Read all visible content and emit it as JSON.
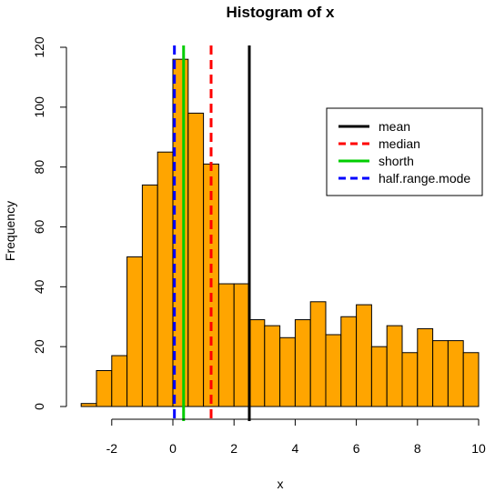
{
  "chart_data": {
    "type": "bar",
    "title": "Histogram of x",
    "xlabel": "x",
    "ylabel": "Frequency",
    "xlim": [
      -3.5,
      10.2
    ],
    "ylim": [
      0,
      120
    ],
    "xticks": [
      -2,
      0,
      2,
      4,
      6,
      8,
      10
    ],
    "yticks": [
      0,
      20,
      40,
      60,
      80,
      100,
      120
    ],
    "bin_width": 0.5,
    "bins": [
      {
        "x0": -3.0,
        "x1": -2.5,
        "count": 1
      },
      {
        "x0": -2.5,
        "x1": -2.0,
        "count": 12
      },
      {
        "x0": -2.0,
        "x1": -1.5,
        "count": 17
      },
      {
        "x0": -1.5,
        "x1": -1.0,
        "count": 50
      },
      {
        "x0": -1.0,
        "x1": -0.5,
        "count": 74
      },
      {
        "x0": -0.5,
        "x1": 0.0,
        "count": 85
      },
      {
        "x0": 0.0,
        "x1": 0.5,
        "count": 116
      },
      {
        "x0": 0.5,
        "x1": 1.0,
        "count": 98
      },
      {
        "x0": 1.0,
        "x1": 1.5,
        "count": 81
      },
      {
        "x0": 1.5,
        "x1": 2.0,
        "count": 41
      },
      {
        "x0": 2.0,
        "x1": 2.5,
        "count": 41
      },
      {
        "x0": 2.5,
        "x1": 3.0,
        "count": 29
      },
      {
        "x0": 3.0,
        "x1": 3.5,
        "count": 27
      },
      {
        "x0": 3.5,
        "x1": 4.0,
        "count": 23
      },
      {
        "x0": 4.0,
        "x1": 4.5,
        "count": 29
      },
      {
        "x0": 4.5,
        "x1": 5.0,
        "count": 35
      },
      {
        "x0": 5.0,
        "x1": 5.5,
        "count": 24
      },
      {
        "x0": 5.5,
        "x1": 6.0,
        "count": 30
      },
      {
        "x0": 6.0,
        "x1": 6.5,
        "count": 34
      },
      {
        "x0": 6.5,
        "x1": 7.0,
        "count": 20
      },
      {
        "x0": 7.0,
        "x1": 7.5,
        "count": 27
      },
      {
        "x0": 7.5,
        "x1": 8.0,
        "count": 18
      },
      {
        "x0": 8.0,
        "x1": 8.5,
        "count": 26
      },
      {
        "x0": 8.5,
        "x1": 9.0,
        "count": 22
      },
      {
        "x0": 9.0,
        "x1": 9.5,
        "count": 22
      },
      {
        "x0": 9.5,
        "x1": 10.0,
        "count": 18
      }
    ],
    "bar_fill": "#FFA500",
    "bar_stroke": "#000000",
    "vlines": [
      {
        "name": "mean",
        "x": 2.5,
        "color": "#000000",
        "dashed": false
      },
      {
        "name": "median",
        "x": 1.25,
        "color": "#FF0000",
        "dashed": true
      },
      {
        "name": "shorth",
        "x": 0.35,
        "color": "#00CD00",
        "dashed": false
      },
      {
        "name": "half.range.mode",
        "x": 0.05,
        "color": "#0000FF",
        "dashed": true
      }
    ],
    "legend": {
      "position": "top-right",
      "entries": [
        "mean",
        "median",
        "shorth",
        "half.range.mode"
      ]
    },
    "grid": false
  }
}
